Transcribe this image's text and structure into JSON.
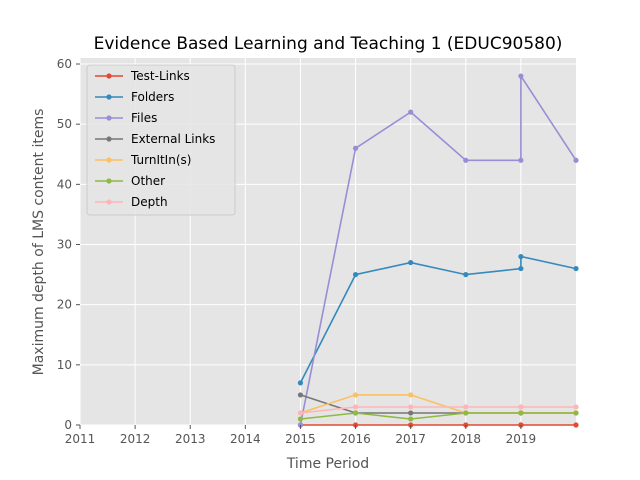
{
  "chart_data": {
    "type": "line",
    "title": "Evidence Based Learning and Teaching 1 (EDUC90580)",
    "xlabel": "Time Period",
    "ylabel": "Maximum depth of LMS content items",
    "xlim": [
      2011,
      2020
    ],
    "ylim": [
      0,
      61
    ],
    "xticks": [
      2011,
      2012,
      2013,
      2014,
      2015,
      2016,
      2017,
      2018,
      2019
    ],
    "yticks": [
      0,
      10,
      20,
      30,
      40,
      50,
      60
    ],
    "grid": true,
    "legend_position": "top-left",
    "x": [
      2015,
      2016,
      2017,
      2018,
      2019,
      2019,
      2020
    ],
    "series": [
      {
        "name": "Test-Links",
        "color": "#e24a33",
        "values": [
          0,
          0,
          0,
          0,
          0,
          0,
          0
        ]
      },
      {
        "name": "Folders",
        "color": "#348abd",
        "values": [
          7,
          25,
          27,
          25,
          26,
          28,
          26
        ]
      },
      {
        "name": "Files",
        "color": "#988ed5",
        "values": [
          0,
          46,
          52,
          44,
          44,
          58,
          44
        ]
      },
      {
        "name": "External Links",
        "color": "#777777",
        "values": [
          5,
          2,
          2,
          2,
          2,
          2,
          2
        ]
      },
      {
        "name": "TurnItIn(s)",
        "color": "#fbc15e",
        "values": [
          2,
          5,
          5,
          2,
          2,
          2,
          2
        ]
      },
      {
        "name": "Other",
        "color": "#8eba42",
        "values": [
          1,
          2,
          1,
          2,
          2,
          2,
          2
        ]
      },
      {
        "name": "Depth",
        "color": "#ffb5b8",
        "values": [
          2,
          3,
          3,
          3,
          3,
          3,
          3
        ]
      }
    ]
  }
}
